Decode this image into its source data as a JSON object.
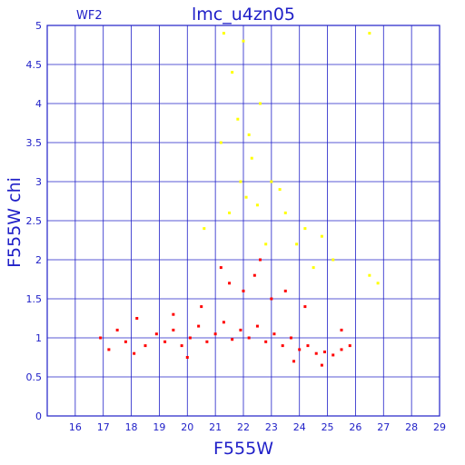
{
  "panel_label": "WF2",
  "chart_data": {
    "type": "scatter",
    "title": "lmc_u4zn05",
    "xlabel": "F555W",
    "ylabel": "F555W  chi",
    "xlim": [
      15,
      29
    ],
    "ylim": [
      0,
      5
    ],
    "x_ticks": [
      16,
      17,
      18,
      19,
      20,
      21,
      22,
      23,
      24,
      25,
      26,
      27,
      28,
      29
    ],
    "y_ticks": [
      0,
      0.5,
      1,
      1.5,
      2,
      2.5,
      3,
      3.5,
      4,
      4.5,
      5
    ],
    "x_tick_labels": [
      "16",
      "17",
      "18",
      "19",
      "20",
      "21",
      "22",
      "23",
      "24",
      "25",
      "26",
      "27",
      "28",
      "29"
    ],
    "y_tick_labels": [
      "0",
      "0.5",
      "1",
      "1.5",
      "2",
      "2.5",
      "3",
      "3.5",
      "4",
      "4.5",
      "5"
    ],
    "grid": true,
    "legend": "none",
    "colors": {
      "axes": "#2020c8",
      "grid": "#2020c8",
      "main": "#ff0000",
      "outlier": "#ffff00"
    },
    "series": [
      {
        "values": [
          [
            16.9,
            1.0
          ],
          [
            17.2,
            0.85
          ],
          [
            17.8,
            0.95
          ],
          [
            18.1,
            0.8
          ],
          [
            18.5,
            0.9
          ],
          [
            18.9,
            1.05
          ],
          [
            19.2,
            0.95
          ],
          [
            19.5,
            1.1
          ],
          [
            19.8,
            0.9
          ],
          [
            20.1,
            1.0
          ],
          [
            20.4,
            1.15
          ],
          [
            20.7,
            0.95
          ],
          [
            21.0,
            1.05
          ],
          [
            21.3,
            1.2
          ],
          [
            21.6,
            0.98
          ],
          [
            21.9,
            1.1
          ],
          [
            22.2,
            1.0
          ],
          [
            22.5,
            1.15
          ],
          [
            22.8,
            0.95
          ],
          [
            23.1,
            1.05
          ],
          [
            23.4,
            0.9
          ],
          [
            23.7,
            1.0
          ],
          [
            24.0,
            0.85
          ],
          [
            24.3,
            0.9
          ],
          [
            24.6,
            0.8
          ],
          [
            24.9,
            0.82
          ],
          [
            25.2,
            0.78
          ],
          [
            25.5,
            0.85
          ],
          [
            25.8,
            0.9
          ],
          [
            22.0,
            1.6
          ],
          [
            22.4,
            1.8
          ],
          [
            23.0,
            1.5
          ],
          [
            21.5,
            1.7
          ],
          [
            20.5,
            1.4
          ],
          [
            23.5,
            1.6
          ],
          [
            22.6,
            2.0
          ],
          [
            21.2,
            1.9
          ],
          [
            19.5,
            1.3
          ],
          [
            24.2,
            1.4
          ],
          [
            20.0,
            0.75
          ],
          [
            23.8,
            0.7
          ],
          [
            24.8,
            0.65
          ],
          [
            18.2,
            1.25
          ],
          [
            17.5,
            1.1
          ],
          [
            25.5,
            1.1
          ]
        ]
      },
      {
        "values": [
          [
            21.2,
            3.5
          ],
          [
            21.8,
            3.8
          ],
          [
            22.3,
            3.3
          ],
          [
            22.6,
            4.0
          ],
          [
            21.6,
            4.4
          ],
          [
            23.0,
            3.0
          ],
          [
            22.1,
            2.8
          ],
          [
            23.5,
            2.6
          ],
          [
            24.2,
            2.4
          ],
          [
            24.8,
            2.3
          ],
          [
            22.8,
            2.2
          ],
          [
            21.5,
            2.6
          ],
          [
            21.9,
            3.0
          ],
          [
            22.5,
            2.7
          ],
          [
            23.3,
            2.9
          ],
          [
            25.2,
            2.0
          ],
          [
            26.5,
            1.8
          ],
          [
            26.8,
            1.7
          ],
          [
            22.0,
            4.8
          ],
          [
            21.3,
            4.9
          ],
          [
            26.5,
            4.9
          ],
          [
            20.6,
            2.4
          ],
          [
            23.9,
            2.2
          ],
          [
            24.5,
            1.9
          ],
          [
            22.2,
            3.6
          ]
        ]
      }
    ]
  }
}
